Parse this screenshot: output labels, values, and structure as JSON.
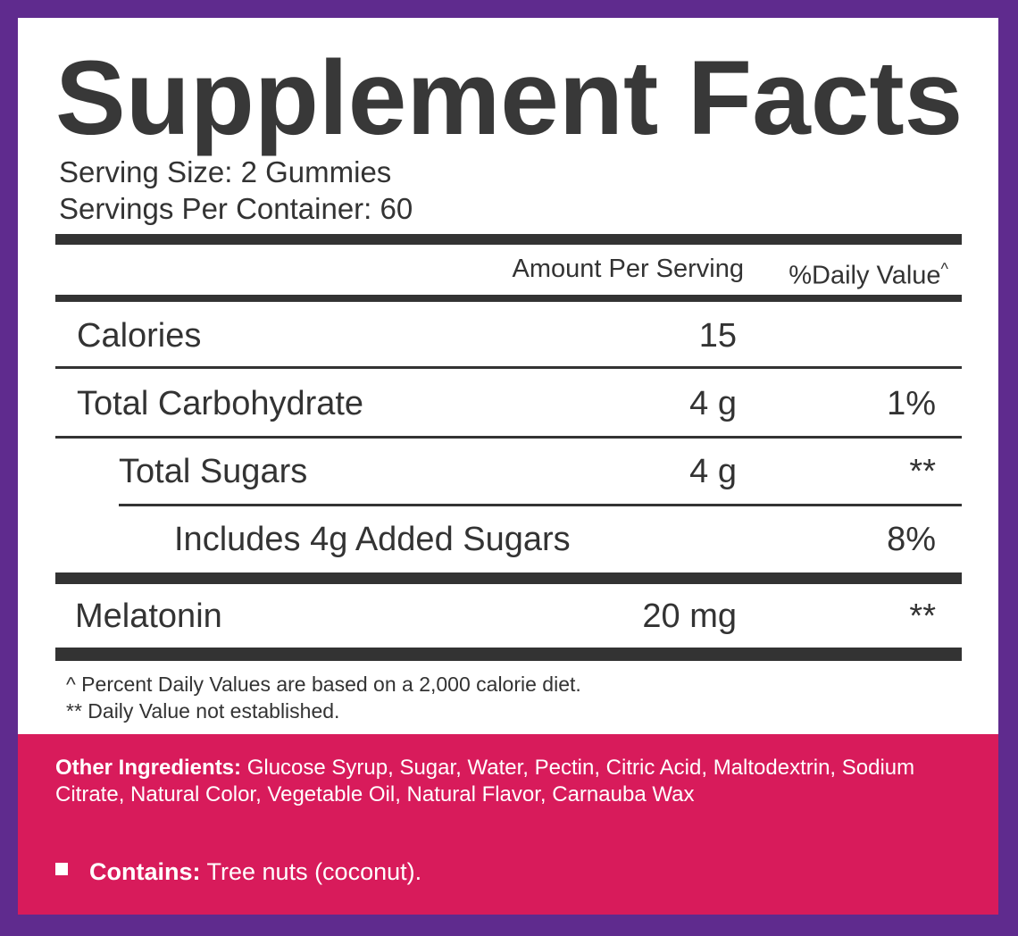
{
  "header": {
    "title": "Supplement Facts",
    "serving_size": "Serving Size: 2 Gummies",
    "servings_per_container": "Servings Per Container: 60"
  },
  "columns": {
    "amount": "Amount Per Serving",
    "daily_value": "%Daily Value",
    "daily_value_mark": "^"
  },
  "rows": [
    {
      "name": "Calories",
      "amount": "15"
    },
    {
      "name": "Total Carbohydrate",
      "amount": "4 g",
      "dv": "1%"
    },
    {
      "name": "Total Sugars",
      "amount": "4 g",
      "dv": "**"
    },
    {
      "name": "Includes 4g Added Sugars",
      "dv": "8%"
    },
    {
      "name": "Melatonin",
      "amount": "20 mg",
      "dv": "**"
    }
  ],
  "footnotes": [
    "^ Percent Daily Values are based on a 2,000 calorie diet.",
    "** Daily Value not established."
  ],
  "ingredients": {
    "label": "Other Ingredients:",
    "text": "Glucose Syrup, Sugar, Water, Pectin, Citric Acid, Maltodextrin, Sodium Citrate, Natural Color, Vegetable Oil, Natural Flavor, Carnauba Wax"
  },
  "contains": {
    "label": "Contains:",
    "text": "Tree nuts (coconut)."
  }
}
